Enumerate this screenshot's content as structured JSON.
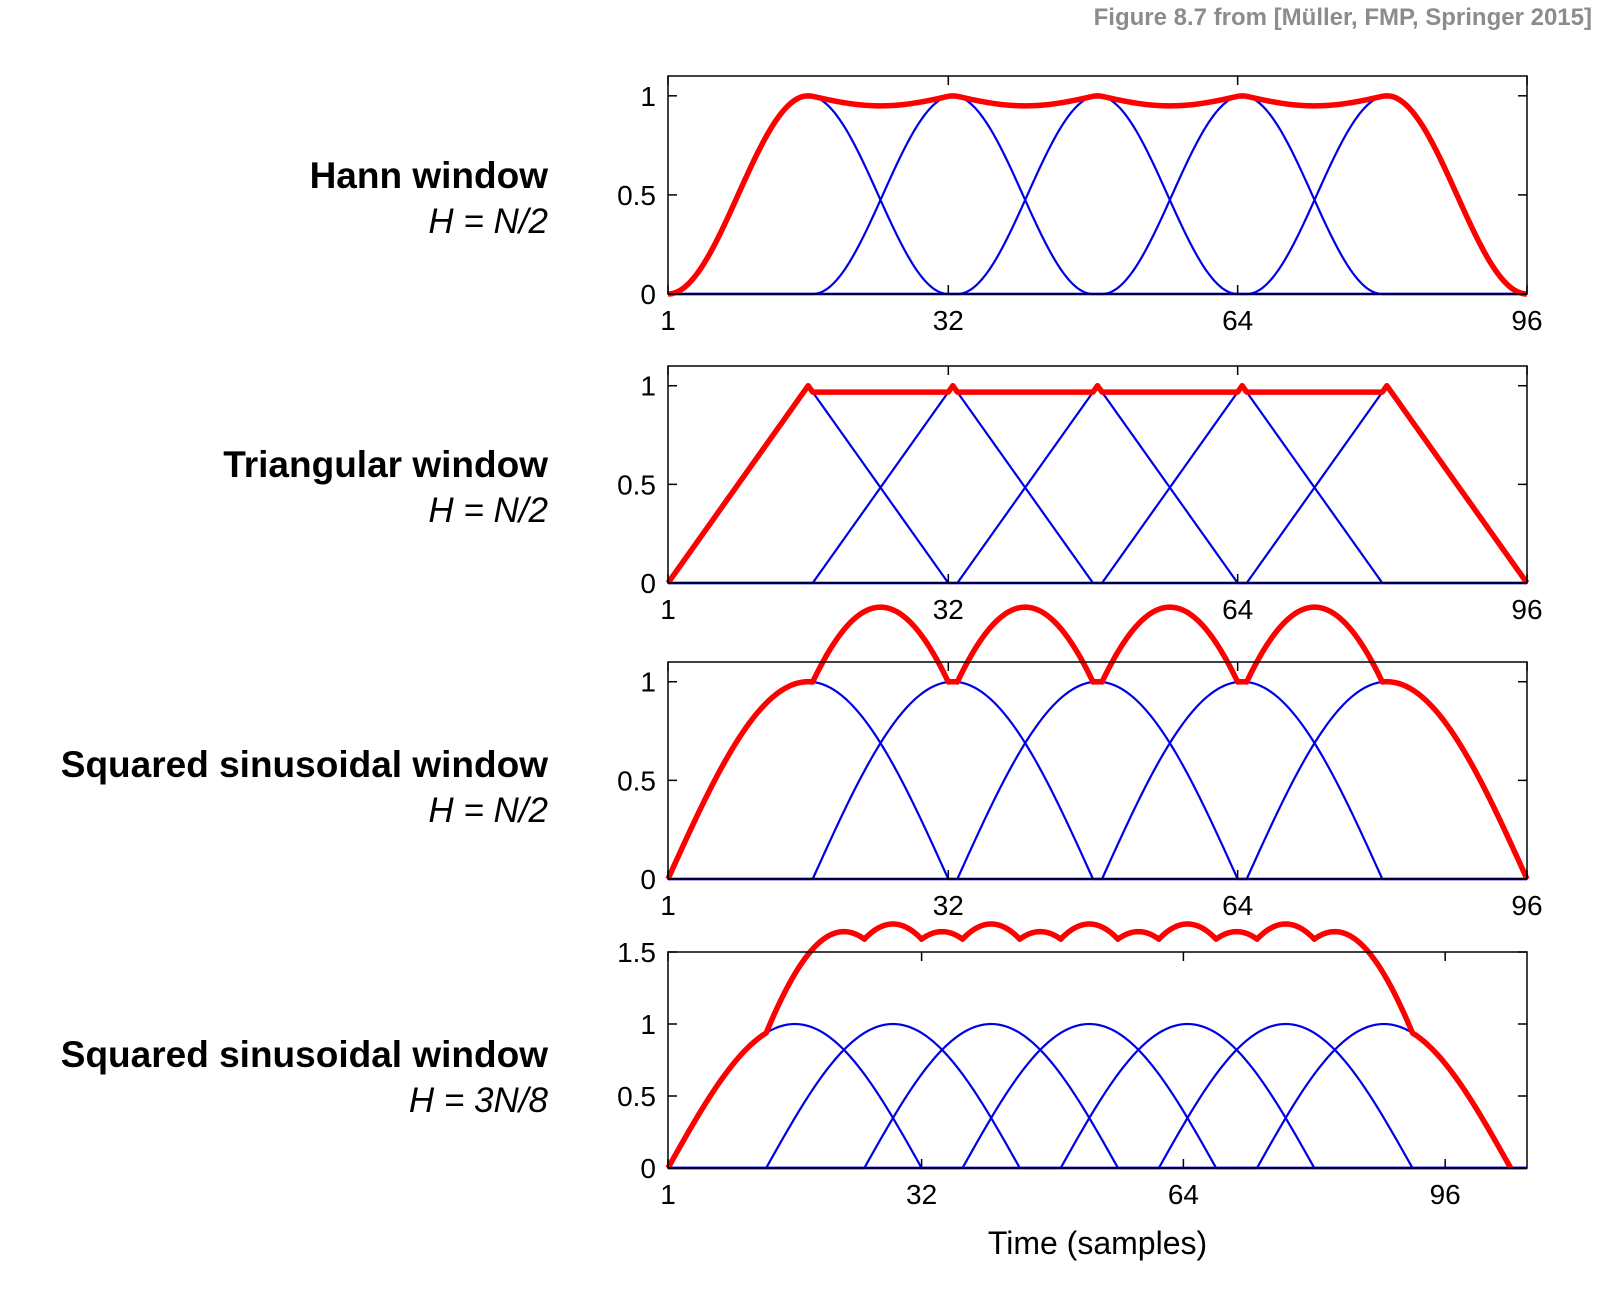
{
  "credit": "Figure 8.7 from [Müller, FMP, Springer 2015]",
  "xlabel": "Time (samples)",
  "colors": {
    "window": "#0000e6",
    "sum": "#ff0000",
    "axis": "#000000"
  },
  "panels": [
    {
      "name": "Hann window",
      "hop": "H = N/2"
    },
    {
      "name": "Triangular window",
      "hop": "H = N/2"
    },
    {
      "name": "Squared sinusoidal window",
      "hop": "H = N/2"
    },
    {
      "name": "Squared sinusoidal window",
      "hop": "H = 3N/8"
    }
  ],
  "chart_data": [
    {
      "type": "line",
      "window": "hann",
      "window_length": 32,
      "hop": 16,
      "offset": 1,
      "num_windows": 5,
      "xlim": [
        1,
        96
      ],
      "ylim": [
        0,
        1.1
      ],
      "xticks": [
        1,
        32,
        64,
        96
      ],
      "xtick_labels": [
        "1",
        "32",
        "64",
        "96"
      ],
      "yticks": [
        0,
        0.5,
        1
      ],
      "ytick_labels": [
        "0",
        "0.5",
        "1"
      ],
      "grid": false,
      "xlabel": ""
    },
    {
      "type": "line",
      "window": "triangular",
      "window_length": 32,
      "hop": 16,
      "offset": 1,
      "num_windows": 5,
      "xlim": [
        1,
        96
      ],
      "ylim": [
        0,
        1.1
      ],
      "xticks": [
        1,
        32,
        64,
        96
      ],
      "xtick_labels": [
        "1",
        "32",
        "64",
        "96"
      ],
      "yticks": [
        0,
        0.5,
        1
      ],
      "ytick_labels": [
        "0",
        "0.5",
        "1"
      ],
      "grid": false,
      "xlabel": ""
    },
    {
      "type": "line",
      "window": "squared_sinusoidal",
      "window_length": 32,
      "hop": 16,
      "offset": 1,
      "num_windows": 5,
      "xlim": [
        1,
        96
      ],
      "ylim": [
        0,
        1.1
      ],
      "xticks": [
        1,
        32,
        64,
        96
      ],
      "xtick_labels": [
        "1",
        "32",
        "64",
        "96"
      ],
      "yticks": [
        0,
        0.5,
        1
      ],
      "ytick_labels": [
        "0",
        "0.5",
        "1"
      ],
      "grid": false,
      "xlabel": ""
    },
    {
      "type": "line",
      "window": "squared_sinusoidal",
      "window_length": 32,
      "hop": 12,
      "offset": 1,
      "num_windows": 7,
      "xlim": [
        1,
        106
      ],
      "ylim": [
        0,
        1.5
      ],
      "xticks": [
        1,
        32,
        64,
        96
      ],
      "xtick_labels": [
        "1",
        "32",
        "64",
        "96"
      ],
      "yticks": [
        0,
        0.5,
        1,
        1.5
      ],
      "ytick_labels": [
        "0",
        "0.5",
        "1",
        "1.5"
      ],
      "grid": false,
      "xlabel": "Time (samples)"
    }
  ]
}
